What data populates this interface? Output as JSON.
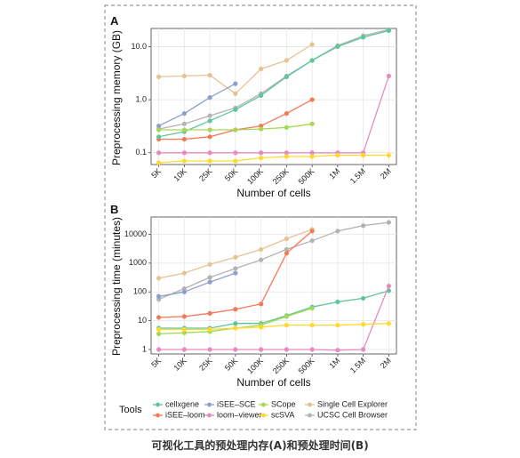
{
  "caption": "可视化工具的预处理内存(A)和预处理时间(B)",
  "legend": {
    "title": "Tools",
    "items": [
      {
        "name": "cellxgene",
        "color": "#5ec79a"
      },
      {
        "name": "iSEE–SCE",
        "color": "#8da0cb"
      },
      {
        "name": "SCope",
        "color": "#a6d854"
      },
      {
        "name": "Single Cell Explorer",
        "color": "#e5c494"
      },
      {
        "name": "iSEE–loom",
        "color": "#f47a56"
      },
      {
        "name": "loom–viewer",
        "color": "#e78ac3"
      },
      {
        "name": "scSVA",
        "color": "#ffd92f"
      },
      {
        "name": "UCSC Cell Browser",
        "color": "#b3b3b3"
      }
    ]
  },
  "chart_data": [
    {
      "panel": "A",
      "type": "line",
      "ylabel": "Preprocessing memory (GB)",
      "xlabel": "Number of cells",
      "yscale": "log",
      "ylim": [
        0.06,
        22
      ],
      "yticks": [
        0.1,
        1.0,
        10.0
      ],
      "yticklabels": [
        "0.1",
        "1.0",
        "10.0"
      ],
      "categories": [
        "5K",
        "10K",
        "25K",
        "50K",
        "100K",
        "250K",
        "500K",
        "1M",
        "1.5M",
        "2M"
      ],
      "series": [
        {
          "name": "cellxgene",
          "values": [
            0.2,
            0.25,
            0.4,
            0.65,
            1.2,
            2.7,
            5.5,
            10,
            15,
            20
          ]
        },
        {
          "name": "iSEE–SCE",
          "values": [
            0.32,
            0.55,
            1.1,
            2.0,
            null,
            null,
            null,
            null,
            null,
            null
          ]
        },
        {
          "name": "SCope",
          "values": [
            0.27,
            0.27,
            0.27,
            0.27,
            0.28,
            0.3,
            0.35,
            null,
            null,
            null
          ]
        },
        {
          "name": "Single Cell Explorer",
          "values": [
            2.7,
            2.8,
            2.9,
            1.3,
            3.8,
            5.5,
            11,
            null,
            null,
            null
          ]
        },
        {
          "name": "iSEE–loom",
          "values": [
            0.18,
            0.18,
            0.2,
            0.27,
            0.32,
            0.55,
            1.0,
            null,
            null,
            null
          ]
        },
        {
          "name": "loom–viewer",
          "values": [
            0.1,
            0.1,
            0.1,
            0.1,
            0.1,
            0.1,
            0.1,
            0.1,
            0.1,
            2.8
          ]
        },
        {
          "name": "scSVA",
          "values": [
            0.065,
            0.07,
            0.07,
            0.07,
            0.08,
            0.085,
            0.085,
            0.09,
            0.09,
            0.09
          ]
        },
        {
          "name": "UCSC Cell Browser",
          "values": [
            0.28,
            0.35,
            0.5,
            0.7,
            1.3,
            2.8,
            5.5,
            10.5,
            16,
            21
          ]
        }
      ]
    },
    {
      "panel": "B",
      "type": "line",
      "ylabel": "Preprocessing time (minutes)",
      "xlabel": "Number of cells",
      "yscale": "log",
      "ylim": [
        0.7,
        40000
      ],
      "yticks": [
        1,
        10,
        100,
        1000,
        10000
      ],
      "yticklabels": [
        "1",
        "10",
        "100",
        "1000",
        "10000"
      ],
      "categories": [
        "5K",
        "10K",
        "25K",
        "50K",
        "100K",
        "250K",
        "500K",
        "1M",
        "1.5M",
        "2M"
      ],
      "series": [
        {
          "name": "cellxgene",
          "values": [
            5.5,
            5.5,
            5.5,
            8,
            8,
            15,
            30,
            45,
            60,
            110
          ]
        },
        {
          "name": "iSEE–SCE",
          "values": [
            70,
            100,
            220,
            450,
            null,
            null,
            null,
            null,
            null,
            null
          ]
        },
        {
          "name": "SCope",
          "values": [
            3.5,
            3.8,
            4.2,
            5.5,
            7,
            14,
            27,
            null,
            null,
            null
          ]
        },
        {
          "name": "Single Cell Explorer",
          "values": [
            300,
            450,
            900,
            1600,
            3000,
            7000,
            15000,
            null,
            null,
            null
          ]
        },
        {
          "name": "iSEE–loom",
          "values": [
            13,
            14,
            18,
            25,
            38,
            2200,
            13000,
            null,
            null,
            null
          ]
        },
        {
          "name": "loom–viewer",
          "values": [
            1,
            1,
            1,
            1,
            1,
            1,
            1,
            0.95,
            1,
            160
          ]
        },
        {
          "name": "scSVA",
          "values": [
            5,
            5,
            5,
            5.5,
            6,
            7,
            7,
            7,
            7.5,
            8
          ]
        },
        {
          "name": "UCSC Cell Browser",
          "values": [
            55,
            130,
            320,
            650,
            1300,
            3000,
            6000,
            13000,
            20000,
            26000
          ]
        }
      ]
    }
  ]
}
